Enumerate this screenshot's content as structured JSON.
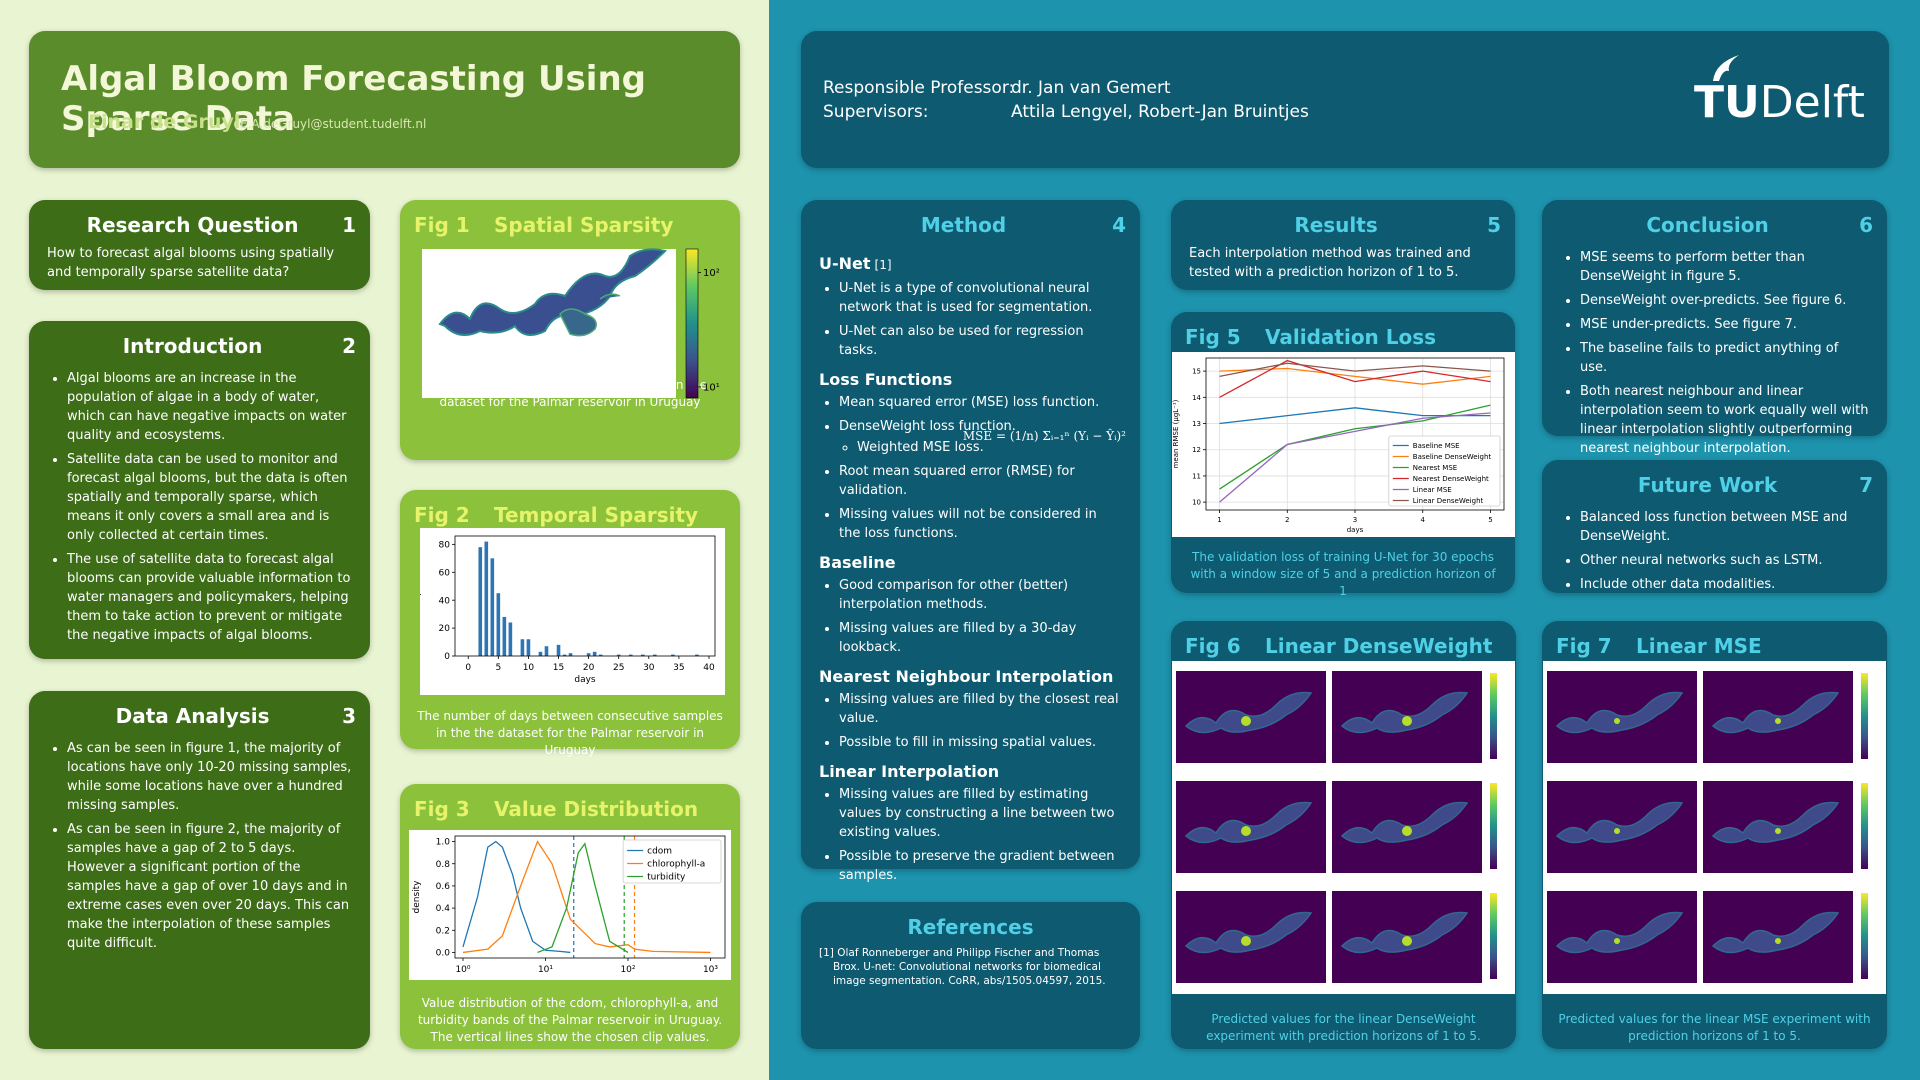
{
  "header": {
    "title": "Algal Bloom Forecasting Using Sparse Data",
    "author": "Einar de Gruyl",
    "email": "E.A.deGruyl@student.tudelft.nl",
    "professor_label": "Responsible Professor:",
    "professor": "dr. Jan van Gemert",
    "supervisors_label": "Supervisors:",
    "supervisors": "Attila Lengyel, Robert-Jan Bruintjes",
    "logo_tu": "TU",
    "logo_delft": "Delft"
  },
  "research_question": {
    "title": "Research Question",
    "number": 1,
    "text": "How to forecast algal blooms using spatially and temporally sparse satellite data?"
  },
  "introduction": {
    "title": "Introduction",
    "number": 2,
    "bullets": [
      "Algal blooms are an increase in the population of algae in a body of water, which can have negative impacts on water quality and ecosystems.",
      "Satellite data can be used to monitor and forecast algal blooms, but the data is often spatially and temporally sparse, which means it only covers a small area and is only collected at certain times.",
      "The use of satellite data to forecast algal blooms can provide valuable information to water managers and policymakers, helping them to take action to prevent or mitigate the negative impacts of algal blooms."
    ]
  },
  "data_analysis": {
    "title": "Data Analysis",
    "number": 3,
    "bullets": [
      "As can be seen in figure 1, the majority of locations have only 10-20 missing samples, while some locations have over a hundred missing samples.",
      "As can be seen in figure 2, the majority of samples have a gap of 2 to 5 days. However a significant portion of the samples have a gap of over 10 days and in extreme cases even over 20 days. This can make the interpolation of these samples quite difficult."
    ]
  },
  "method": {
    "title": "Method",
    "number": 4,
    "subsections": [
      {
        "heading": "U-Net",
        "ref": "[1]",
        "bullets": [
          "U-Net is a type of convolutional neural network that is used for segmentation.",
          "U-Net can also be used for regression tasks."
        ]
      },
      {
        "heading": "Loss Functions",
        "formula": "MSE = (1/n) Σᵢ₌₁ⁿ (Yᵢ − Ŷᵢ)²",
        "bullets": [
          "Mean squared error (MSE) loss function.",
          {
            "text": "DenseWeight loss function.",
            "sub": [
              "Weighted MSE loss."
            ]
          },
          "Root mean squared error (RMSE) for validation.",
          "Missing values will not be considered in the loss functions."
        ]
      },
      {
        "heading": "Baseline",
        "bullets": [
          "Good comparison for other (better) interpolation methods.",
          "Missing values are filled by a 30-day lookback."
        ]
      },
      {
        "heading": "Nearest Neighbour Interpolation",
        "bullets": [
          "Missing values are filled by the closest real value.",
          "Possible to fill in missing spatial values."
        ]
      },
      {
        "heading": "Linear Interpolation",
        "bullets": [
          "Missing values are filled by estimating values by constructing a line between two existing values.",
          "Possible to preserve the gradient between samples."
        ]
      }
    ]
  },
  "references": {
    "title": "References",
    "items": [
      "[1] Olaf Ronneberger and Philipp Fischer and Thomas Brox. U-net: Convolutional networks for biomedical image segmentation. CoRR, abs/1505.04597, 2015."
    ]
  },
  "results": {
    "title": "Results",
    "number": 5,
    "text": "Each interpolation method was trained and tested with a prediction horizon of 1 to 5."
  },
  "conclusion": {
    "title": "Conclusion",
    "number": 6,
    "bullets": [
      "MSE seems to perform better than DenseWeight in figure 5.",
      "DenseWeight over-predicts. See figure 6.",
      "MSE under-predicts. See figure 7.",
      "The baseline fails to predict anything of use.",
      "Both nearest neighbour and linear interpolation seem to work equally well with linear interpolation slightly outperforming nearest neighbour interpolation."
    ]
  },
  "future_work": {
    "title": "Future Work",
    "number": 7,
    "bullets": [
      "Balanced loss function between MSE and DenseWeight.",
      "Other neural networks such as LSTM.",
      "Include other data modalities."
    ]
  },
  "fig1": {
    "label": "Fig 1",
    "title": "Spatial Sparsity",
    "caption": "The number of missing spatial samples in the dataset for the Palmar reservoir in Uruguay",
    "colorbar": {
      "log": true,
      "clim": [
        8,
        160
      ],
      "ticks": [
        {
          "value": 100,
          "label": "10²"
        },
        {
          "value": 10,
          "label": "10¹"
        }
      ]
    }
  },
  "fig2": {
    "label": "Fig 2",
    "title": "Temporal Sparsity",
    "caption": "The number of days between consecutive samples in the the dataset for the Palmar reservoir in Uruguay",
    "chart_data": {
      "type": "bar",
      "x_label": "days",
      "y_label": "samples",
      "color": "#2e75b6",
      "x": [
        2,
        3,
        4,
        5,
        6,
        7,
        9,
        10,
        12,
        13,
        15,
        16,
        17,
        20,
        21,
        22,
        25,
        27,
        29,
        31,
        34,
        38
      ],
      "values": [
        78,
        82,
        70,
        45,
        28,
        24,
        12,
        12,
        3,
        7,
        8,
        1,
        2,
        2,
        3,
        1,
        1,
        1,
        1,
        1,
        1,
        1
      ],
      "xlim": [
        -2.2,
        41
      ],
      "xticks": [
        0,
        5,
        10,
        15,
        20,
        25,
        30,
        35,
        40
      ],
      "ylim": [
        0,
        86
      ],
      "yticks": [
        0,
        20,
        40,
        60,
        80
      ]
    }
  },
  "fig3": {
    "label": "Fig 3",
    "title": "Value Distribution",
    "caption": "Value distribution of the cdom, chlorophyll-a, and turbidity bands of the Palmar reservoir in Uruguay. The vertical lines show the chosen clip values.",
    "chart_data": {
      "type": "line",
      "xlog": true,
      "y_label": "density",
      "legend": "upper right",
      "xlim": [
        0.8,
        1500
      ],
      "xticks": [
        {
          "value": 1,
          "label": "10⁰"
        },
        {
          "value": 10,
          "label": "10¹"
        },
        {
          "value": 100,
          "label": "10²"
        },
        {
          "value": 1000,
          "label": "10³"
        }
      ],
      "ylim": [
        -0.05,
        1.05
      ],
      "yticks": [
        {
          "value": 0,
          "label": "0.0"
        },
        0.2,
        0.4,
        0.6,
        0.8,
        {
          "value": 1,
          "label": "1.0"
        }
      ],
      "series": [
        {
          "name": "cdom",
          "color": "#1f77b4",
          "clip": 22,
          "x": [
            1,
            1.5,
            2,
            2.5,
            3,
            4,
            5,
            7,
            10,
            15,
            20
          ],
          "values": [
            0.05,
            0.5,
            0.95,
            1.0,
            0.95,
            0.7,
            0.4,
            0.1,
            0.02,
            0.01,
            0
          ]
        },
        {
          "name": "chlorophyll-a",
          "color": "#ff7f0e",
          "clip": 120,
          "x": [
            1,
            2,
            3,
            5,
            8,
            12,
            20,
            40,
            60,
            100,
            120,
            200,
            1000
          ],
          "values": [
            0,
            0.03,
            0.15,
            0.6,
            1.0,
            0.8,
            0.3,
            0.08,
            0.05,
            0.07,
            0.03,
            0.01,
            0
          ]
        },
        {
          "name": "turbidity",
          "color": "#2ca02c",
          "clip": 90,
          "x": [
            8,
            12,
            18,
            25,
            30,
            40,
            60,
            100
          ],
          "values": [
            0,
            0.05,
            0.4,
            0.9,
            0.98,
            0.6,
            0.1,
            0
          ]
        }
      ]
    }
  },
  "fig5": {
    "label": "Fig 5",
    "title": "Validation Loss",
    "caption": "The validation loss of training U-Net for 30 epochs with a window size of 5 and a prediction horizon of 1",
    "chart_data": {
      "type": "line",
      "x_label": "days",
      "y_label": "mean RMSE (µgL⁻¹)",
      "grid": true,
      "legend": "lower right",
      "x": [
        1,
        2,
        3,
        4,
        5
      ],
      "xlim": [
        0.8,
        5.2
      ],
      "xticks": [
        1,
        2,
        3,
        4,
        5
      ],
      "ylim": [
        9.7,
        15.5
      ],
      "yticks": [
        10,
        11,
        12,
        13,
        14,
        15
      ],
      "series": [
        {
          "name": "Baseline MSE",
          "color": "#1f77b4",
          "values": [
            13.0,
            13.3,
            13.6,
            13.3,
            13.3
          ]
        },
        {
          "name": "Baseline DenseWeight",
          "color": "#ff7f0e",
          "values": [
            15.0,
            15.1,
            14.8,
            14.5,
            14.8
          ]
        },
        {
          "name": "Nearest MSE",
          "color": "#2ca02c",
          "values": [
            10.5,
            12.2,
            12.8,
            13.1,
            13.7
          ]
        },
        {
          "name": "Nearest DenseWeight",
          "color": "#d62728",
          "values": [
            14.0,
            15.4,
            14.6,
            15.0,
            14.6
          ]
        },
        {
          "name": "Linear MSE",
          "color": "#9467bd",
          "values": [
            10.0,
            12.2,
            12.7,
            13.2,
            13.4
          ]
        },
        {
          "name": "Linear DenseWeight",
          "color": "#8c564b",
          "values": [
            14.8,
            15.3,
            15.0,
            15.2,
            15.0
          ]
        }
      ]
    }
  },
  "fig6": {
    "label": "Fig 6",
    "title": "Linear DenseWeight",
    "caption": "Predicted values for the linear DenseWeight experiment with prediction horizons of 1 to 5."
  },
  "fig7": {
    "label": "Fig 7",
    "title": "Linear MSE",
    "caption": "Predicted values for the linear MSE experiment with prediction horizons of 1 to 5."
  }
}
